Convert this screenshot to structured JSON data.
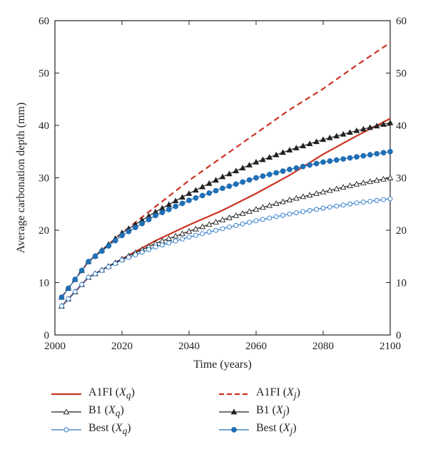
{
  "chart_data": {
    "type": "line",
    "xlabel": "Time (years)",
    "ylabel": "Average carbonation depth (mm)",
    "xlim": [
      2000,
      2100
    ],
    "ylim": [
      0,
      60
    ],
    "x_ticks": [
      2000,
      2020,
      2040,
      2060,
      2080,
      2100
    ],
    "y_ticks": [
      0,
      10,
      20,
      30,
      40,
      50,
      60
    ],
    "right_axis_ticks": [
      0,
      10,
      20,
      30,
      40,
      50,
      60
    ],
    "grid": false,
    "legend_position": "bottom",
    "series": [
      {
        "name": "A1FI (Xq)",
        "legend_base": "A1FI",
        "legend_sub": "q",
        "color": "#cc3322",
        "dash": "",
        "marker": "none",
        "points": [
          [
            2002,
            5.5
          ],
          [
            2010,
            11
          ],
          [
            2020,
            14.5
          ],
          [
            2030,
            18
          ],
          [
            2040,
            21
          ],
          [
            2050,
            23.8
          ],
          [
            2060,
            27
          ],
          [
            2070,
            30.5
          ],
          [
            2080,
            34.5
          ],
          [
            2090,
            38
          ],
          [
            2100,
            41.3
          ]
        ]
      },
      {
        "name": "A1FI (Xj)",
        "legend_base": "A1FI",
        "legend_sub": "j",
        "color": "#cc3322",
        "dash": "8,5",
        "marker": "none",
        "points": [
          [
            2002,
            7.2
          ],
          [
            2010,
            14
          ],
          [
            2020,
            19.5
          ],
          [
            2030,
            24.5
          ],
          [
            2040,
            29.5
          ],
          [
            2050,
            34
          ],
          [
            2060,
            38.5
          ],
          [
            2070,
            43
          ],
          [
            2080,
            47
          ],
          [
            2090,
            51.5
          ],
          [
            2100,
            55.8
          ]
        ]
      },
      {
        "name": "B1 (Xq)",
        "legend_base": "B1",
        "legend_sub": "q",
        "color": "#222222",
        "dash": "",
        "marker": "triangle-open",
        "points": [
          [
            2002,
            5.5
          ],
          [
            2010,
            11
          ],
          [
            2020,
            14.5
          ],
          [
            2030,
            17.5
          ],
          [
            2040,
            19.8
          ],
          [
            2050,
            22
          ],
          [
            2060,
            24
          ],
          [
            2070,
            25.8
          ],
          [
            2080,
            27.3
          ],
          [
            2090,
            28.8
          ],
          [
            2100,
            30
          ]
        ]
      },
      {
        "name": "B1 (Xj)",
        "legend_base": "B1",
        "legend_sub": "j",
        "color": "#222222",
        "dash": "",
        "marker": "triangle-filled",
        "points": [
          [
            2002,
            7.2
          ],
          [
            2010,
            14
          ],
          [
            2020,
            19.5
          ],
          [
            2030,
            23.5
          ],
          [
            2040,
            27
          ],
          [
            2050,
            30.2
          ],
          [
            2060,
            33
          ],
          [
            2070,
            35.3
          ],
          [
            2080,
            37.3
          ],
          [
            2090,
            39
          ],
          [
            2100,
            40.5
          ]
        ]
      },
      {
        "name": "Best (Xq)",
        "legend_base": "Best",
        "legend_sub": "q",
        "color": "#2a78c8",
        "dash": "",
        "marker": "circle-open",
        "points": [
          [
            2002,
            5.5
          ],
          [
            2010,
            11
          ],
          [
            2020,
            14.3
          ],
          [
            2030,
            16.8
          ],
          [
            2040,
            18.7
          ],
          [
            2050,
            20.3
          ],
          [
            2060,
            21.8
          ],
          [
            2070,
            23.1
          ],
          [
            2080,
            24.2
          ],
          [
            2090,
            25.2
          ],
          [
            2100,
            26
          ]
        ]
      },
      {
        "name": "Best (Xj)",
        "legend_base": "Best",
        "legend_sub": "j",
        "color": "#1f6fb5",
        "dash": "",
        "marker": "circle-filled",
        "points": [
          [
            2002,
            7.2
          ],
          [
            2010,
            14
          ],
          [
            2020,
            19
          ],
          [
            2030,
            22.8
          ],
          [
            2040,
            25.7
          ],
          [
            2050,
            28
          ],
          [
            2060,
            30
          ],
          [
            2070,
            31.6
          ],
          [
            2080,
            33
          ],
          [
            2090,
            34
          ],
          [
            2100,
            35
          ]
        ]
      }
    ]
  }
}
